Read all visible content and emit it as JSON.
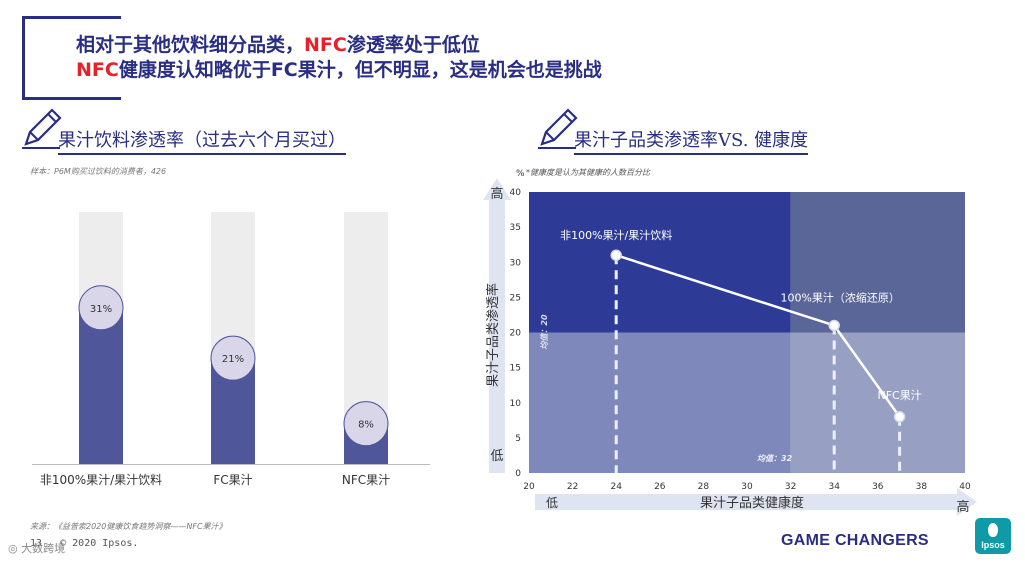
{
  "header": {
    "line1": "相对于其他饮料细分品类，",
    "line1_red": "NFC",
    "line1_rest": "渗透率处于低位",
    "line2_red": "NFC",
    "line2_rest": "健康度认知略优于FC果汁，但不明显，这是机会也是挑战"
  },
  "left": {
    "heading": "果汁饮料渗透率（过去六个月买过）",
    "sample_note": "样本：P6M购买过饮料的消费者，426",
    "source_note": "来源：《益普索2020健康饮食趋势洞察——NFC果汁》",
    "copyright": "© 2020 Ipsos.",
    "page_num": "13"
  },
  "right": {
    "heading": "果汁子品类渗透率VS. 健康度",
    "note": "*健康度是认为其健康的人数百分比",
    "unit": "%",
    "y_high": "高",
    "y_low": "低",
    "x_low": "低",
    "x_high": "高",
    "avg_y_label": "均值：20",
    "avg_x_label": "均值：32"
  },
  "footer": {
    "brand": "GAME CHANGERS",
    "logo": "Ipsos",
    "watermark": "大数跨境"
  },
  "colors": {
    "navy": "#2a2e82",
    "red": "#e8202a",
    "bar": "#4f5699",
    "bar_bg": "#ededed",
    "q_top_left": "#2e3b96",
    "q_top_right": "#5a6598",
    "q_bottom_left": "#7e88bb",
    "q_bottom_right": "#97a0c3",
    "axis_arrow": "#dfe4f2"
  },
  "chart_data": [
    {
      "type": "bar",
      "title": "果汁饮料渗透率（过去六个月买过）",
      "categories": [
        "非100%果汁/果汁饮料",
        "FC果汁",
        "NFC果汁"
      ],
      "values": [
        31,
        21,
        8
      ],
      "value_labels": [
        "31%",
        "21%",
        "8%"
      ],
      "ylim": [
        0,
        50
      ]
    },
    {
      "type": "line",
      "title": "果汁子品类渗透率VS. 健康度",
      "xlabel": "果汁子品类健康度",
      "ylabel": "果汁子品类渗透率",
      "xlim": [
        20,
        40
      ],
      "ylim": [
        0,
        40
      ],
      "x_ticks": [
        20,
        22,
        24,
        26,
        28,
        30,
        32,
        34,
        36,
        38,
        40
      ],
      "y_ticks": [
        0,
        5,
        10,
        15,
        20,
        25,
        30,
        35,
        40
      ],
      "x_mean": 32,
      "y_mean": 20,
      "points": [
        {
          "label": "非100%果汁/果汁饮料",
          "x": 24,
          "y": 31
        },
        {
          "label": "100%果汁（浓缩还原）",
          "x": 34,
          "y": 21
        },
        {
          "label": "NFC果汁",
          "x": 37,
          "y": 8
        }
      ]
    }
  ]
}
